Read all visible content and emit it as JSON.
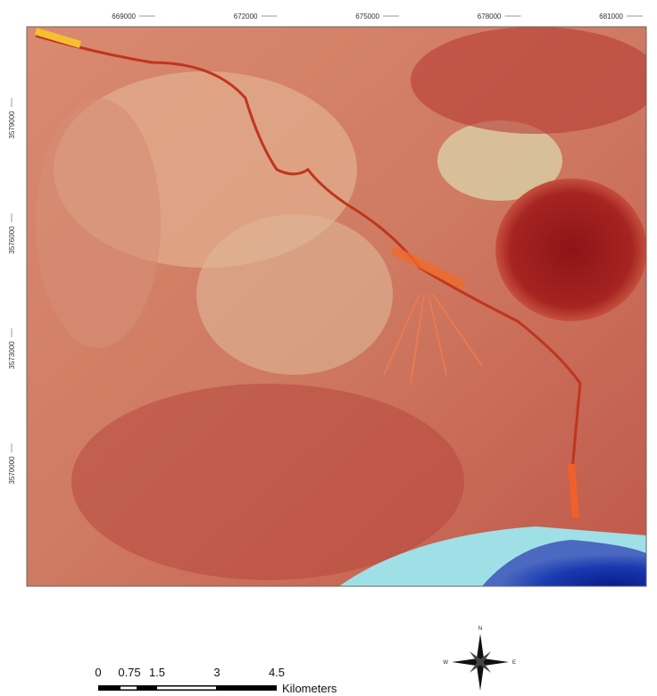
{
  "map": {
    "easting_labels": [
      669000,
      672000,
      675000,
      678000,
      681000
    ],
    "northing_labels": [
      3579000,
      3576000,
      3573000,
      3570000
    ],
    "scale_bar": {
      "labels": [
        "0",
        "0.75",
        "1.5",
        "3",
        "4.5"
      ],
      "unit": "Kilometers"
    },
    "north_arrow": {
      "n": "N",
      "e": "E",
      "w": "W"
    }
  }
}
